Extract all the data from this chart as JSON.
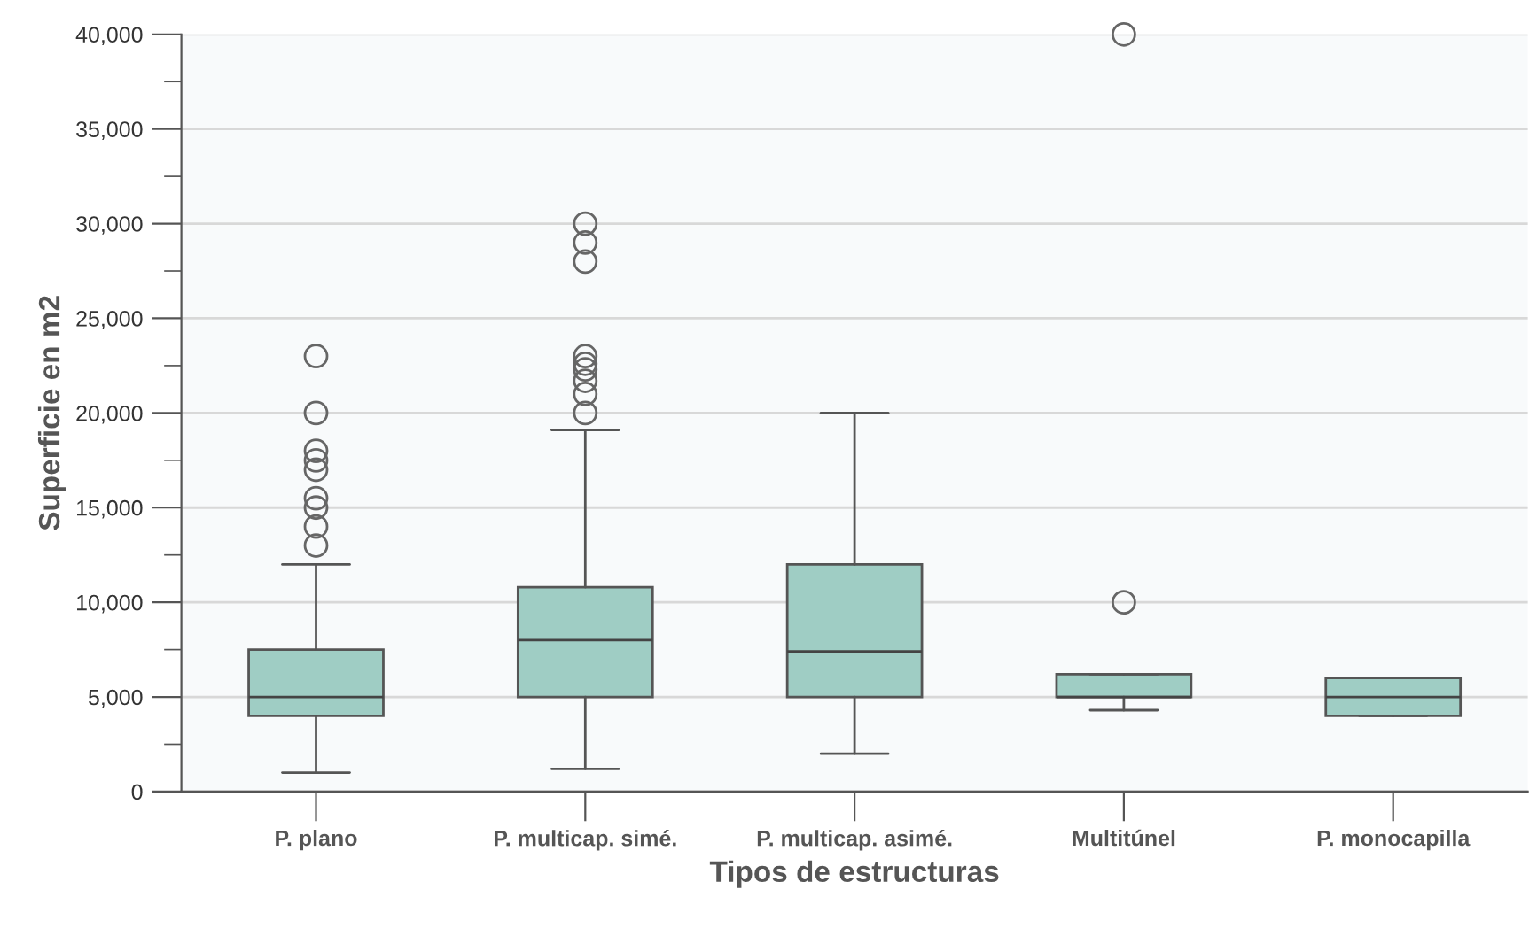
{
  "chart_data": {
    "type": "box",
    "xlabel": "Tipos de estructuras",
    "ylabel": "Superficie en m2",
    "categories": [
      "P. plano",
      "P. multicap. simé.",
      "P. multicap. asimé.",
      "Multitúnel",
      "P. monocapilla"
    ],
    "color": "#9fcdc4",
    "boxes": [
      {
        "low": 1000,
        "q1": 4000,
        "median": 5000,
        "q3": 7500,
        "high": 12000,
        "outliers": [
          13000,
          14000,
          15000,
          15500,
          17000,
          17500,
          18000,
          20000,
          23000
        ]
      },
      {
        "low": 1200,
        "q1": 5000,
        "median": 8000,
        "q3": 10800,
        "high": 19100,
        "outliers": [
          20000,
          21000,
          21700,
          22300,
          22600,
          23000,
          28000,
          29000,
          30000
        ]
      },
      {
        "low": 2000,
        "q1": 5000,
        "median": 7400,
        "q3": 12000,
        "high": 20000
      },
      {
        "low": 4300,
        "q1": 5000,
        "median": 5000,
        "q3": 6200,
        "high": 6200,
        "outliers": [
          10000,
          40000
        ]
      },
      {
        "low": 4000,
        "q1": 4000,
        "median": 5000,
        "q3": 6000,
        "high": 6000
      }
    ],
    "ylim": [
      0,
      40000
    ],
    "yticks": [
      {
        "value": 0,
        "label": "0"
      },
      {
        "value": 2500,
        "label": null
      },
      {
        "value": 5000,
        "label": "5,000"
      },
      {
        "value": 7500,
        "label": null
      },
      {
        "value": 10000,
        "label": "10,000"
      },
      {
        "value": 12500,
        "label": null
      },
      {
        "value": 15000,
        "label": "15,000"
      },
      {
        "value": 17500,
        "label": null
      },
      {
        "value": 20000,
        "label": "20,000"
      },
      {
        "value": 22500,
        "label": null
      },
      {
        "value": 25000,
        "label": "25,000"
      },
      {
        "value": 27500,
        "label": null
      },
      {
        "value": 30000,
        "label": "30,000"
      },
      {
        "value": 32500,
        "label": null
      },
      {
        "value": 35000,
        "label": "35,000"
      },
      {
        "value": 37500,
        "label": null
      },
      {
        "value": 40000,
        "label": "40,000"
      }
    ],
    "grid": "y"
  }
}
